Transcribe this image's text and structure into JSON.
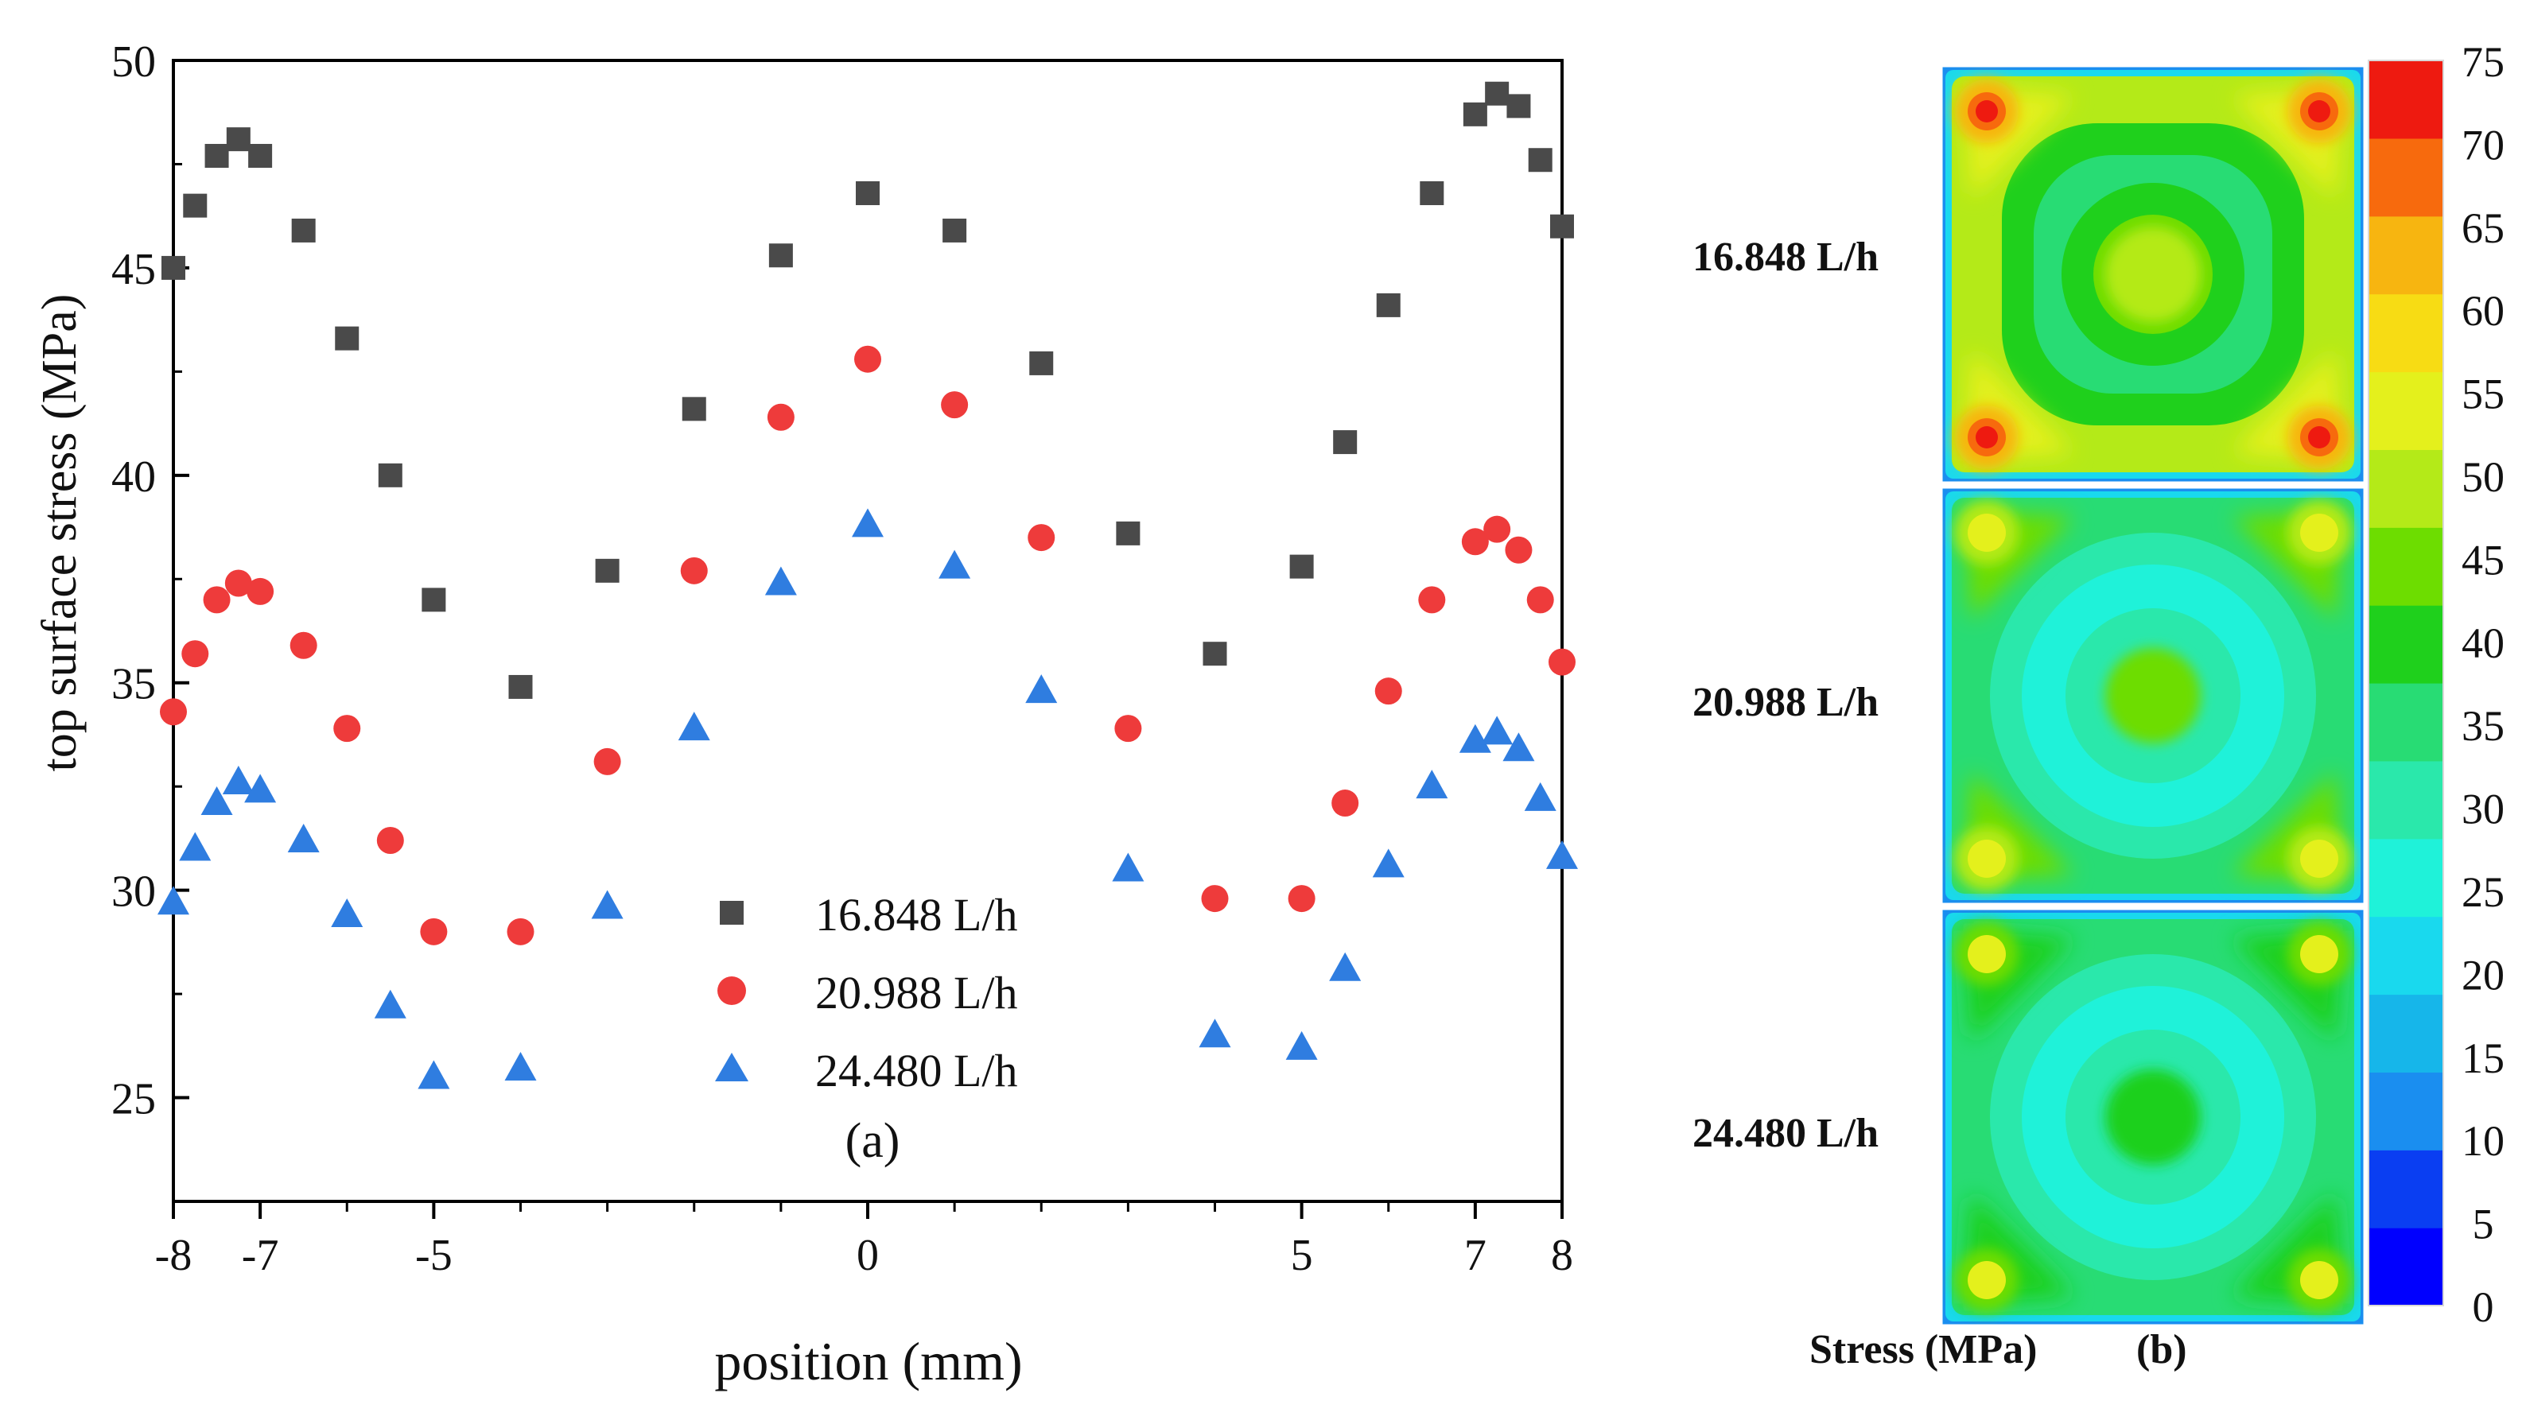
{
  "figure": {
    "panel_a_label": "(a)",
    "panel_b_label": "(b)",
    "colorbar_title": "Stress (MPa)"
  },
  "chart_data": [
    {
      "type": "scatter",
      "panel": "(a)",
      "title": "",
      "xlabel": "position (mm)",
      "ylabel": "top surface stress (MPa)",
      "xlim": [
        -8,
        8
      ],
      "ylim": [
        22.5,
        50
      ],
      "xticks": [
        -8,
        -7,
        -5,
        0,
        5,
        7,
        8
      ],
      "xtick_labels": [
        "-8",
        "-7",
        "-5",
        "0",
        "5",
        "7",
        "8"
      ],
      "xminor_ticks": [
        -6,
        -4,
        -3,
        -2,
        -1,
        1,
        2,
        3,
        4,
        6
      ],
      "yticks": [
        25,
        30,
        35,
        40,
        45,
        50
      ],
      "ytick_labels": [
        "25",
        "30",
        "35",
        "40",
        "45",
        "50"
      ],
      "yminor_ticks": [
        22.5,
        27.5,
        32.5,
        37.5,
        42.5,
        47.5
      ],
      "legend_position": "bottom-center",
      "series": [
        {
          "name": "16.848 L/h",
          "marker": "square",
          "color": "#4a4a4a",
          "x": [
            -8,
            -7.75,
            -7.5,
            -7.25,
            -7,
            -6.5,
            -6,
            -5.5,
            -5,
            -4,
            -3,
            -2,
            -1,
            0,
            1,
            2,
            3,
            4,
            5,
            5.5,
            6,
            6.5,
            7,
            7.25,
            7.5,
            7.75,
            8
          ],
          "y": [
            45,
            46.5,
            47.7,
            48.1,
            47.7,
            45.9,
            43.3,
            40,
            37,
            34.9,
            37.7,
            41.6,
            45.3,
            46.8,
            45.9,
            42.7,
            38.6,
            35.7,
            37.8,
            40.8,
            44.1,
            46.8,
            48.7,
            49.2,
            48.9,
            47.6,
            46
          ]
        },
        {
          "name": "20.988 L/h",
          "marker": "circle",
          "color": "#ee3b3b",
          "x": [
            -8,
            -7.75,
            -7.5,
            -7.25,
            -7,
            -6.5,
            -6,
            -5.5,
            -5,
            -4,
            -3,
            -2,
            -1,
            0,
            1,
            2,
            3,
            4,
            5,
            5.5,
            6,
            6.5,
            7,
            7.25,
            7.5,
            7.75,
            8
          ],
          "y": [
            34.3,
            35.7,
            37,
            37.4,
            37.2,
            35.9,
            33.9,
            31.2,
            29,
            29,
            33.1,
            37.7,
            41.4,
            42.8,
            41.7,
            38.5,
            33.9,
            29.8,
            29.8,
            32.1,
            34.8,
            37,
            38.4,
            38.7,
            38.2,
            37,
            35.5
          ]
        },
        {
          "name": "24.480 L/h",
          "marker": "triangle",
          "color": "#2f7de0",
          "x": [
            -8,
            -7.75,
            -7.5,
            -7.25,
            -7,
            -6.5,
            -6,
            -5.5,
            -5,
            -4,
            -3,
            -2,
            -1,
            0,
            1,
            2,
            3,
            4,
            5,
            5.5,
            6,
            6.5,
            7,
            7.25,
            7.5,
            7.75,
            8
          ],
          "y": [
            29.7,
            31,
            32.1,
            32.6,
            32.4,
            31.2,
            29.4,
            27.2,
            25.5,
            25.7,
            29.6,
            33.9,
            37.4,
            38.8,
            37.8,
            34.8,
            30.5,
            26.5,
            26.2,
            28.1,
            30.6,
            32.5,
            33.6,
            33.8,
            33.4,
            32.2,
            30.8
          ]
        }
      ]
    },
    {
      "type": "heatmap",
      "panel": "(b)",
      "title": "",
      "colorbar_label": "Stress (MPa)",
      "colorbar_range": [
        0,
        75
      ],
      "colorbar_ticks": [
        "0",
        "5",
        "10",
        "15",
        "20",
        "25",
        "30",
        "35",
        "40",
        "45",
        "50",
        "55",
        "60",
        "65",
        "70",
        "75"
      ],
      "colorbar_colors": [
        "#0000ff",
        "#0a3ef2",
        "#1a8ef0",
        "#16b6ea",
        "#19d9ee",
        "#1ff2d9",
        "#2ae8ab",
        "#28dc74",
        "#1fd01c",
        "#6ddd00",
        "#b4ea18",
        "#e4f01c",
        "#f7dc14",
        "#f7b510",
        "#f76a0d",
        "#ee1a10"
      ],
      "maps": [
        {
          "label": "16.848 L/h",
          "center_value": 47,
          "ring_value": 38,
          "outer_value": 47,
          "corner_value": 73
        },
        {
          "label": "20.988 L/h",
          "center_value": 43,
          "ring_value": 26,
          "outer_value": 35,
          "corner_value": 60
        },
        {
          "label": "24.480 L/h",
          "center_value": 38,
          "ring_value": 27,
          "outer_value": 33,
          "corner_value": 57
        }
      ]
    }
  ]
}
